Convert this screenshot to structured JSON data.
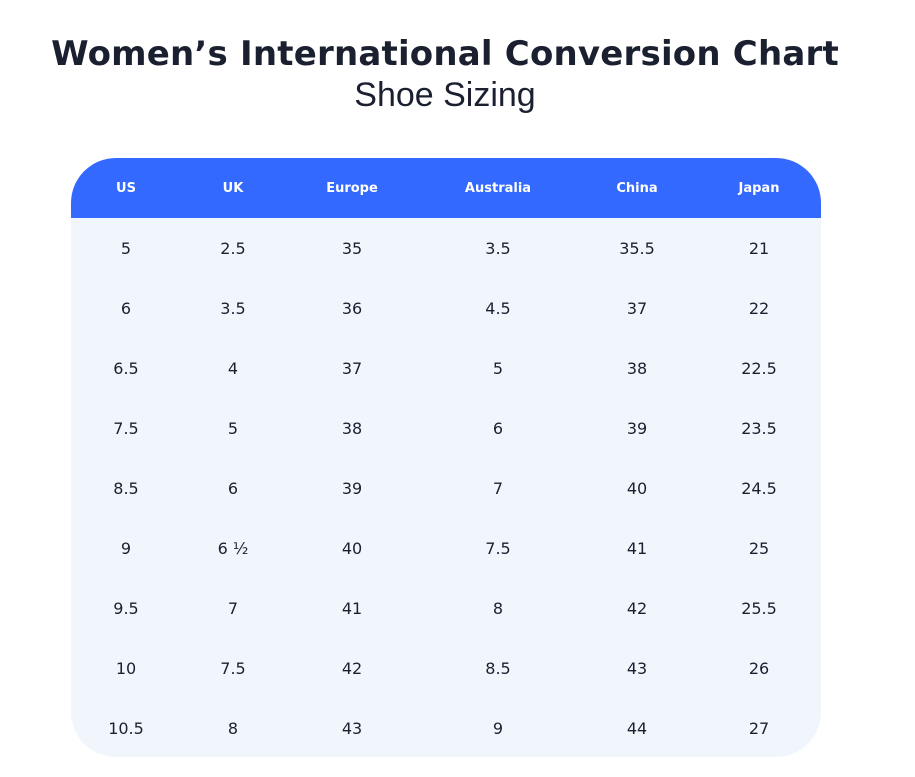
{
  "title": "Women’s International Conversion Chart",
  "subtitle": "Shoe Sizing",
  "colors": {
    "header_bg": "#3369ff",
    "body_bg": "#f1f6fd",
    "text": "#1b2030"
  },
  "columns": [
    "US",
    "UK",
    "Europe",
    "Australia",
    "China",
    "Japan"
  ],
  "rows": [
    [
      "5",
      "2.5",
      "35",
      "3.5",
      "35.5",
      "21"
    ],
    [
      "6",
      "3.5",
      "36",
      "4.5",
      "37",
      "22"
    ],
    [
      "6.5",
      "4",
      "37",
      "5",
      "38",
      "22.5"
    ],
    [
      "7.5",
      "5",
      "38",
      "6",
      "39",
      "23.5"
    ],
    [
      "8.5",
      "6",
      "39",
      "7",
      "40",
      "24.5"
    ],
    [
      "9",
      "6 ½",
      "40",
      "7.5",
      "41",
      "25"
    ],
    [
      "9.5",
      "7",
      "41",
      "8",
      "42",
      "25.5"
    ],
    [
      "10",
      "7.5",
      "42",
      "8.5",
      "43",
      "26"
    ],
    [
      "10.5",
      "8",
      "43",
      "9",
      "44",
      "27"
    ]
  ]
}
